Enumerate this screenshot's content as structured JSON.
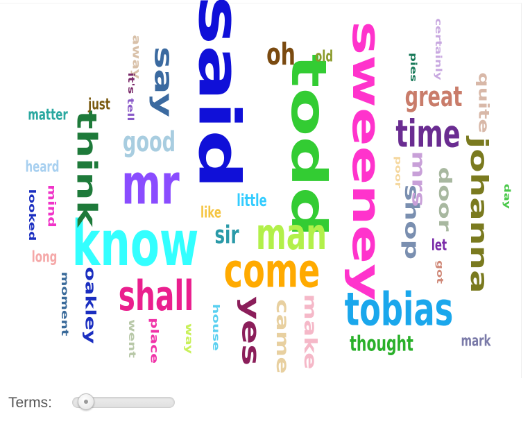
{
  "controls": {
    "terms_label": "Terms:",
    "terms_value": 0.05
  },
  "words": [
    {
      "text": "said",
      "color": "#1010d8",
      "rotated": true
    },
    {
      "text": "todd",
      "color": "#33cc33",
      "rotated": true
    },
    {
      "text": "sweeney",
      "color": "#ff33cc",
      "rotated": true
    },
    {
      "text": "know",
      "color": "#33ffff",
      "rotated": false
    },
    {
      "text": "mr",
      "color": "#8a4cff",
      "rotated": false
    },
    {
      "text": "come",
      "color": "#ffaa00",
      "rotated": false
    },
    {
      "text": "man",
      "color": "#b2f04a",
      "rotated": false
    },
    {
      "text": "tobias",
      "color": "#1aa7ec",
      "rotated": false
    },
    {
      "text": "shall",
      "color": "#ea1f8e",
      "rotated": false
    },
    {
      "text": "think",
      "color": "#1e7a3a",
      "rotated": true
    },
    {
      "text": "johanna",
      "color": "#7a7a1f",
      "rotated": true
    },
    {
      "text": "time",
      "color": "#6a2c91",
      "rotated": false
    },
    {
      "text": "say",
      "color": "#3b6aa0",
      "rotated": true
    },
    {
      "text": "yes",
      "color": "#8b1e5a",
      "rotated": true
    },
    {
      "text": "oh",
      "color": "#7a4a10",
      "rotated": false
    },
    {
      "text": "great",
      "color": "#c97c6a",
      "rotated": false
    },
    {
      "text": "good",
      "color": "#a8cde0",
      "rotated": false
    },
    {
      "text": "shop",
      "color": "#7a8fb0",
      "rotated": true
    },
    {
      "text": "mrs",
      "color": "#c8a0d8",
      "rotated": true
    },
    {
      "text": "door",
      "color": "#a8b8a0",
      "rotated": true
    },
    {
      "text": "came",
      "color": "#e8d0a0",
      "rotated": true
    },
    {
      "text": "make",
      "color": "#f5b8c8",
      "rotated": true
    },
    {
      "text": "oakley",
      "color": "#1a2ec0",
      "rotated": true
    },
    {
      "text": "thought",
      "color": "#2ab02a",
      "rotated": false
    },
    {
      "text": "sir",
      "color": "#2a9aa8",
      "rotated": false
    },
    {
      "text": "quite",
      "color": "#d8b8a8",
      "rotated": true
    },
    {
      "text": "little",
      "color": "#33ccff",
      "rotated": false
    },
    {
      "text": "like",
      "color": "#f5c542",
      "rotated": false
    },
    {
      "text": "matter",
      "color": "#2aa8a0",
      "rotated": false
    },
    {
      "text": "just",
      "color": "#7a5a10",
      "rotated": false
    },
    {
      "text": "heard",
      "color": "#a8d0f0",
      "rotated": false
    },
    {
      "text": "old",
      "color": "#8a9a2a",
      "rotated": false
    },
    {
      "text": "away",
      "color": "#d8c0a8",
      "rotated": true
    },
    {
      "text": "it's",
      "color": "#7a2a6a",
      "rotated": true
    },
    {
      "text": "tell",
      "color": "#8a5ac8",
      "rotated": true
    },
    {
      "text": "certainly",
      "color": "#c8a8e0",
      "rotated": true
    },
    {
      "text": "pies",
      "color": "#1a7a5a",
      "rotated": true
    },
    {
      "text": "poor",
      "color": "#f5d8a0",
      "rotated": true
    },
    {
      "text": "day",
      "color": "#4ac84a",
      "rotated": true
    },
    {
      "text": "mind",
      "color": "#f033c8",
      "rotated": true
    },
    {
      "text": "looked",
      "color": "#1a2ec0",
      "rotated": true
    },
    {
      "text": "long",
      "color": "#f5a8a8",
      "rotated": false
    },
    {
      "text": "moment",
      "color": "#3a6a9a",
      "rotated": true
    },
    {
      "text": "went",
      "color": "#b8c8a8",
      "rotated": true
    },
    {
      "text": "place",
      "color": "#f033a8",
      "rotated": true
    },
    {
      "text": "way",
      "color": "#c8f05a",
      "rotated": true
    },
    {
      "text": "house",
      "color": "#5ad0f0",
      "rotated": true
    },
    {
      "text": "let",
      "color": "#7a2aa8",
      "rotated": false
    },
    {
      "text": "got",
      "color": "#d08a7a",
      "rotated": true
    },
    {
      "text": "mark",
      "color": "#7a7aa8",
      "rotated": false
    }
  ]
}
